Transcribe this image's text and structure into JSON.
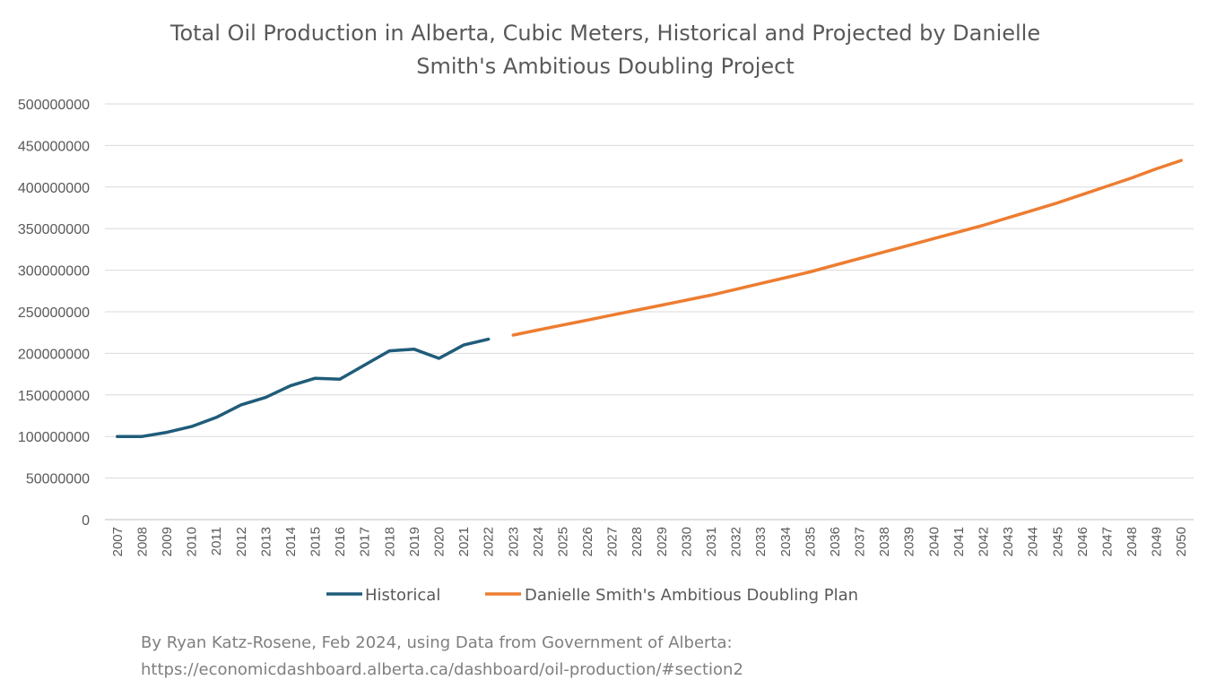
{
  "chart_data": {
    "type": "line",
    "title_lines": [
      "Total Oil Production in Alberta, Cubic Meters, Historical and Projected by Danielle",
      "Smith's Ambitious Doubling Project"
    ],
    "xlabel": "",
    "ylabel": "",
    "ylim": [
      0,
      500000000
    ],
    "yticks": [
      0,
      50000000,
      100000000,
      150000000,
      200000000,
      250000000,
      300000000,
      350000000,
      400000000,
      450000000,
      500000000
    ],
    "ytick_labels": [
      "0",
      "50000000",
      "100000000",
      "150000000",
      "200000000",
      "250000000",
      "300000000",
      "350000000",
      "400000000",
      "450000000",
      "500000000"
    ],
    "categories": [
      "2007",
      "2008",
      "2009",
      "2010",
      "2011",
      "2012",
      "2013",
      "2014",
      "2015",
      "2016",
      "2017",
      "2018",
      "2019",
      "2020",
      "2021",
      "2022",
      "2023",
      "2024",
      "2025",
      "2026",
      "2027",
      "2028",
      "2029",
      "2030",
      "2031",
      "2032",
      "2033",
      "2034",
      "2035",
      "2036",
      "2037",
      "2038",
      "2039",
      "2040",
      "2041",
      "2042",
      "2043",
      "2044",
      "2045",
      "2046",
      "2047",
      "2048",
      "2049",
      "2050"
    ],
    "grid": true,
    "legend_position": "bottom",
    "series": [
      {
        "name": "Historical",
        "color": "#1f5c7a",
        "values": [
          100000000,
          100000000,
          105000000,
          112000000,
          123000000,
          138000000,
          147000000,
          161000000,
          170000000,
          169000000,
          186000000,
          203000000,
          205000000,
          194000000,
          210000000,
          217000000,
          null,
          null,
          null,
          null,
          null,
          null,
          null,
          null,
          null,
          null,
          null,
          null,
          null,
          null,
          null,
          null,
          null,
          null,
          null,
          null,
          null,
          null,
          null,
          null,
          null,
          null,
          null,
          null
        ]
      },
      {
        "name": "Danielle Smith's Ambitious Doubling Plan",
        "color": "#ed7d31",
        "values": [
          null,
          null,
          null,
          null,
          null,
          null,
          null,
          null,
          null,
          null,
          null,
          null,
          null,
          null,
          null,
          null,
          222000000,
          228000000,
          234000000,
          240000000,
          246000000,
          252000000,
          258000000,
          264000000,
          270000000,
          277000000,
          284000000,
          291000000,
          298000000,
          306000000,
          314000000,
          322000000,
          330000000,
          338000000,
          346000000,
          354000000,
          363000000,
          372000000,
          381000000,
          391000000,
          401000000,
          411000000,
          422000000,
          432000000
        ]
      }
    ]
  },
  "credit": {
    "line1": "By Ryan Katz-Rosene, Feb 2024, using Data from Government of Alberta:",
    "line2": "https://economicdashboard.alberta.ca/dashboard/oil-production/#section2"
  }
}
